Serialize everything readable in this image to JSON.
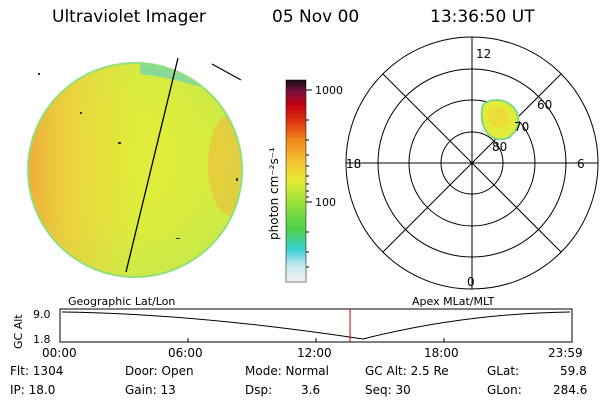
{
  "header": {
    "title": "Ultraviolet Imager",
    "date": "05 Nov 00",
    "time": "13:36:50 UT"
  },
  "colorbar": {
    "unit_label": "photon cm⁻²s⁻¹",
    "ticks": [
      "1000",
      "100"
    ]
  },
  "polar_plot": {
    "mlt_labels": [
      "12",
      "18",
      "6",
      "0"
    ],
    "lat_labels": [
      "60",
      "70",
      "80"
    ]
  },
  "altitude_strip": {
    "left_label": "Geographic Lat/Lon",
    "right_label": "Apex MLat/MLT",
    "axis_label": "GC Alt",
    "y_ticks": [
      "9.0",
      "1.8"
    ],
    "x_ticks": [
      "00:00",
      "06:00",
      "12:00",
      "18:00",
      "23:59"
    ],
    "current_time_fraction": 0.567
  },
  "status": {
    "flt": "Flt: 1304",
    "ip": "IP: 18.0",
    "door": "Door: Open",
    "gain": "Gain: 13",
    "mode": "Mode: Normal",
    "dsp_label": "Dsp:",
    "dsp_value": "3.6",
    "gc_alt": "GC Alt: 2.5 Re",
    "seq": "Seq: 30",
    "glat_label": "GLat:",
    "glat_value": "59.8",
    "glon_label": "GLon:",
    "glon_value": "284.6"
  },
  "colors": {
    "disk_base": "#d6ef3f",
    "disk_warm": "#f0b43a",
    "limb": "#6fdc9a",
    "marker": "#cc0000"
  }
}
